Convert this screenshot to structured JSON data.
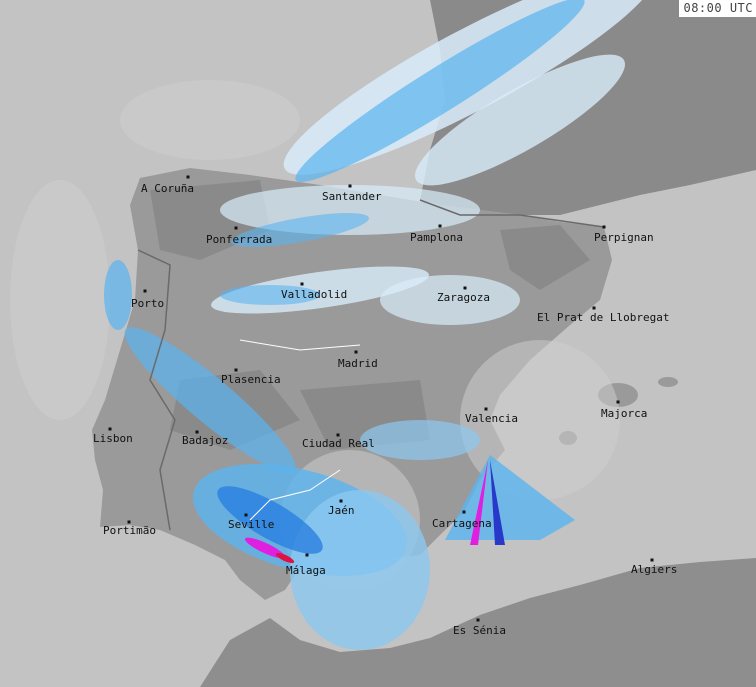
{
  "timestamp": "08:00 UTC",
  "colors": {
    "sea": "#c3c3c3",
    "land": "#9a9a9a",
    "land_dark": "#858585",
    "radar_light": "#d8ecfa",
    "radar_mid": "#5ab4f0",
    "radar_blue": "#2a7fe0",
    "radar_dark": "#2838c8",
    "radar_magenta": "#e020e0",
    "radar_red": "#e01040"
  },
  "cities": [
    {
      "name": "A Coruña"
    },
    {
      "name": "Santander"
    },
    {
      "name": "Ponferrada"
    },
    {
      "name": "Pamplona"
    },
    {
      "name": "Perpignan"
    },
    {
      "name": "Porto"
    },
    {
      "name": "Valladolid"
    },
    {
      "name": "Zaragoza"
    },
    {
      "name": "El Prat de Llobregat"
    },
    {
      "name": "Madrid"
    },
    {
      "name": "Plasencia"
    },
    {
      "name": "Valencia"
    },
    {
      "name": "Majorca"
    },
    {
      "name": "Lisbon"
    },
    {
      "name": "Badajoz"
    },
    {
      "name": "Ciudad Real"
    },
    {
      "name": "Jaén"
    },
    {
      "name": "Seville"
    },
    {
      "name": "Cartagena"
    },
    {
      "name": "Portimão"
    },
    {
      "name": "Málaga"
    },
    {
      "name": "Algiers"
    },
    {
      "name": "Es Sénia"
    }
  ]
}
